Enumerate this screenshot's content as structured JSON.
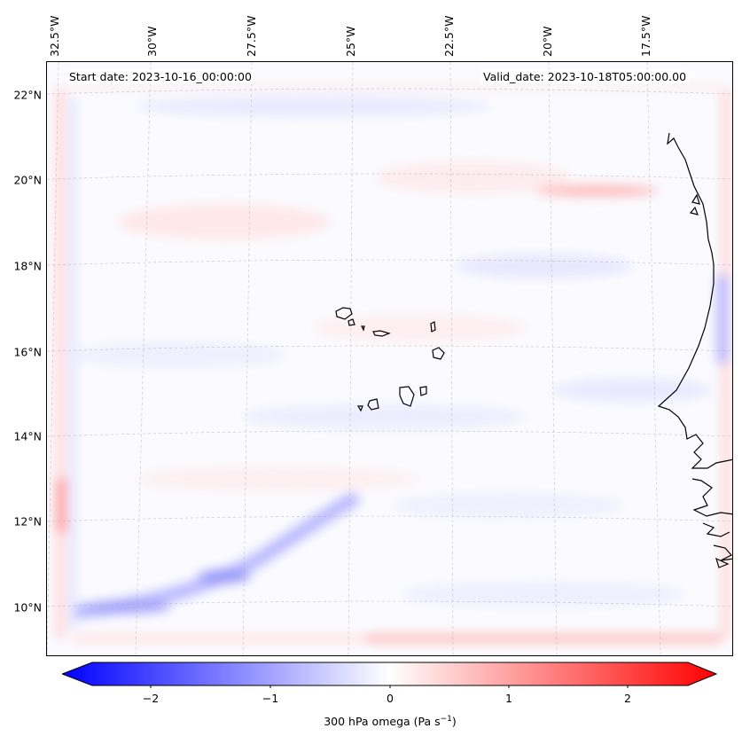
{
  "start_date_label": "Start date: 2023-10-16_00:00:00",
  "valid_date_label": "Valid_date: 2023-10-18T05:00:00.00",
  "latitude_labels": [
    "22°N",
    "20°N",
    "18°N",
    "16°N",
    "14°N",
    "12°N",
    "10°N"
  ],
  "longitude_labels": [
    "32.5°W",
    "30°W",
    "27.5°W",
    "25°W",
    "22.5°W",
    "20°W",
    "17.5°W"
  ],
  "colorbar": {
    "ticks": [
      "−2",
      "−1",
      "0",
      "1",
      "2"
    ],
    "title": "300 hPa omega (Pa s",
    "title_superscript": "−1",
    "title_suffix": ")",
    "min_color": "#0000ff",
    "mid_color": "#ffffff",
    "max_color": "#ff0000"
  },
  "map": {
    "extent_lon": [
      -32.7,
      -16.2
    ],
    "extent_lat": [
      8.9,
      22.8
    ],
    "projection": "lambert-conformal",
    "gridlines": true,
    "field": "omega-300hPa"
  }
}
